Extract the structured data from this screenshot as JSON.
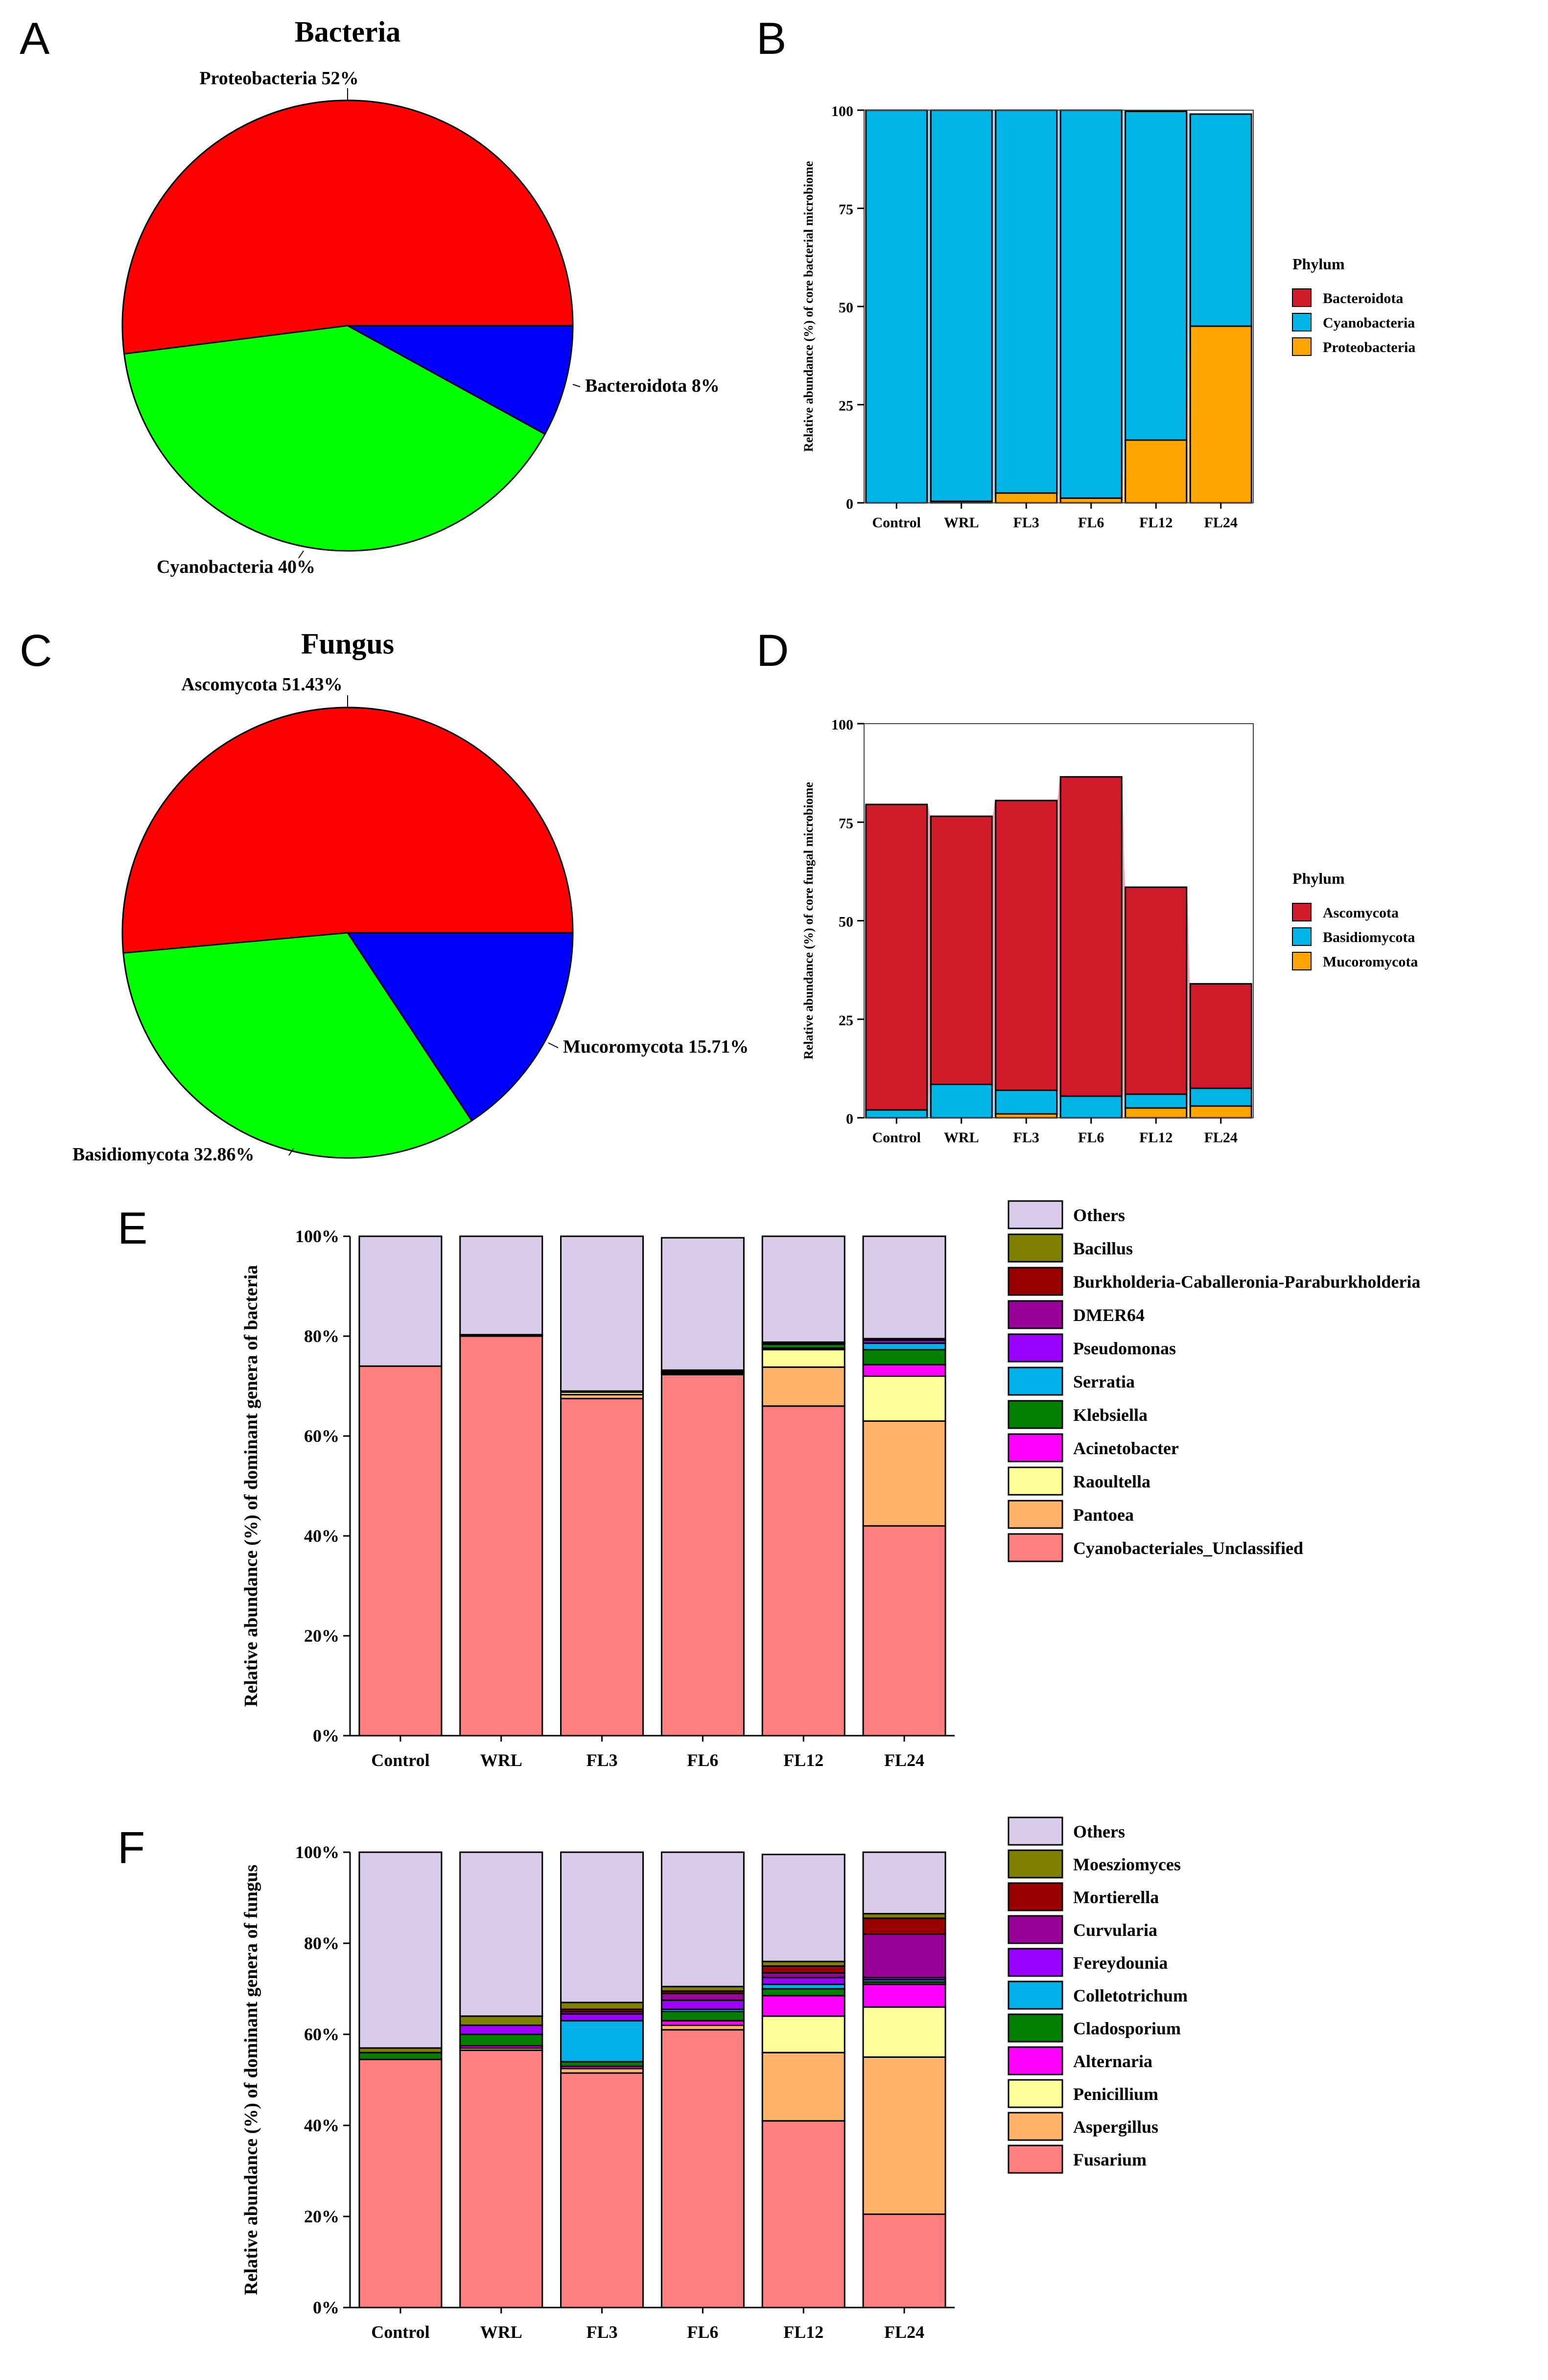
{
  "chart_data": [
    {
      "id": "A",
      "letter": "A",
      "type": "pie",
      "title": "Bacteria",
      "slices": [
        {
          "name": "Proteobacteria",
          "value": 52,
          "label": "Proteobacteria 52%",
          "color": "#ff0000"
        },
        {
          "name": "Cyanobacteria",
          "value": 40,
          "label": "Cyanobacteria 40%",
          "color": "#00ff00"
        },
        {
          "name": "Bacteroidota",
          "value": 8,
          "label": "Bacteroidota 8%",
          "color": "#0000ff"
        }
      ]
    },
    {
      "id": "B",
      "letter": "B",
      "type": "bar",
      "ylabel": "Relative abundance (%) of core bacterial microbiome",
      "ylim": [
        0,
        100
      ],
      "yticks": [
        "0",
        "25",
        "50",
        "75",
        "100"
      ],
      "categories": [
        "Control",
        "WRL",
        "FL3",
        "FL6",
        "FL12",
        "FL24"
      ],
      "legend_title": "Phylum",
      "series": [
        {
          "name": "Proteobacteria",
          "values": [
            0,
            0.4,
            2.5,
            1.2,
            16,
            45
          ],
          "color": "#ffa500",
          "flow": "#ffd580"
        },
        {
          "name": "Cyanobacteria",
          "values": [
            100,
            99.6,
            97.5,
            98.8,
            83.7,
            54
          ],
          "color": "#00b4e6",
          "flow": "#9bd8f2"
        },
        {
          "name": "Bacteroidota",
          "values": [
            0,
            0,
            0,
            0,
            0,
            0
          ],
          "color": "#d01a2a",
          "flow": "#f0a0a8"
        }
      ],
      "legend": [
        "Bacteroidota",
        "Cyanobacteria",
        "Proteobacteria"
      ]
    },
    {
      "id": "C",
      "letter": "C",
      "type": "pie",
      "title": "Fungus",
      "slices": [
        {
          "name": "Ascomycota",
          "value": 51.43,
          "label": "Ascomycota 51.43%",
          "color": "#ff0000"
        },
        {
          "name": "Basidiomycota",
          "value": 32.86,
          "label": "Basidiomycota 32.86%",
          "color": "#00ff00"
        },
        {
          "name": "Mucoromycota",
          "value": 15.71,
          "label": "Mucoromycota 15.71%",
          "color": "#0000ff"
        }
      ]
    },
    {
      "id": "D",
      "letter": "D",
      "type": "bar",
      "ylabel": "Relative abundance (%) of core  fungal microbiome",
      "ylim": [
        0,
        100
      ],
      "yticks": [
        "0",
        "25",
        "50",
        "75",
        "100"
      ],
      "categories": [
        "Control",
        "WRL",
        "FL3",
        "FL6",
        "FL12",
        "FL24"
      ],
      "legend_title": "Phylum",
      "series": [
        {
          "name": "Mucoromycota",
          "values": [
            0,
            0,
            1,
            0,
            2.5,
            3
          ],
          "color": "#ffa500",
          "flow": "#ffd580"
        },
        {
          "name": "Basidiomycota",
          "values": [
            2,
            8.5,
            6,
            5.5,
            3.5,
            4.5
          ],
          "color": "#00b4e6",
          "flow": "#9bd8f2"
        },
        {
          "name": "Ascomycota",
          "values": [
            77.5,
            68,
            73.5,
            81,
            52.5,
            26.5
          ],
          "color": "#d01a2a",
          "flow": "#f0a0a8"
        }
      ],
      "legend": [
        "Ascomycota",
        "Basidiomycota",
        "Mucoromycota"
      ]
    },
    {
      "id": "E",
      "letter": "E",
      "type": "bar",
      "ylabel": "Relative abundance (%) of dominant genera of bacteria",
      "ylim": [
        0,
        100
      ],
      "yticks": [
        "0%",
        "20%",
        "40%",
        "60%",
        "80%",
        "100%"
      ],
      "categories": [
        "Control",
        "WRL",
        "FL3",
        "FL6",
        "FL12",
        "FL24"
      ],
      "series": [
        {
          "name": "Cyanobacteriales_Unclassified",
          "values": [
            74,
            80,
            67.5,
            72.3,
            66,
            42
          ],
          "color": "#ff7f7f"
        },
        {
          "name": "Pantoea",
          "values": [
            0,
            0,
            0.8,
            0.3,
            7.8,
            21
          ],
          "color": "#ffb36b"
        },
        {
          "name": "Raoultella",
          "values": [
            0,
            0,
            0.5,
            0.3,
            3.5,
            9
          ],
          "color": "#ffff99"
        },
        {
          "name": "Acinetobacter",
          "values": [
            0,
            0,
            0,
            0,
            0.3,
            2.3
          ],
          "color": "#ff00ff"
        },
        {
          "name": "Klebsiella",
          "values": [
            0,
            0,
            0,
            0,
            0.8,
            3
          ],
          "color": "#007f00"
        },
        {
          "name": "Serratia",
          "values": [
            0,
            0,
            0,
            0,
            0.3,
            1.3
          ],
          "color": "#00b0e8"
        },
        {
          "name": "Pseudomonas",
          "values": [
            0,
            0,
            0,
            0,
            0,
            0.6
          ],
          "color": "#9900ff"
        },
        {
          "name": "DMER64",
          "values": [
            0,
            0,
            0,
            0,
            0,
            0.2
          ],
          "color": "#990099"
        },
        {
          "name": "Burkholderia-Caballeronia-Paraburkholderia",
          "values": [
            0,
            0,
            0,
            0,
            0,
            0.1
          ],
          "color": "#990000"
        },
        {
          "name": "Bacillus",
          "values": [
            0,
            0.3,
            0.2,
            0.3,
            0.1,
            0
          ],
          "color": "#7f7f00"
        },
        {
          "name": "Others",
          "values": [
            26,
            19.7,
            31,
            26.5,
            21.2,
            20.5
          ],
          "color": "#d9ccea"
        }
      ],
      "legend": [
        "Others",
        "Bacillus",
        "Burkholderia-Caballeronia-Paraburkholderia",
        "DMER64",
        "Pseudomonas",
        "Serratia",
        "Klebsiella",
        "Acinetobacter",
        "Raoultella",
        "Pantoea",
        "Cyanobacteriales_Unclassified"
      ]
    },
    {
      "id": "F",
      "letter": "F",
      "type": "bar",
      "ylabel": "Relative abundance (%) of dominant genera of fungus",
      "ylim": [
        0,
        100
      ],
      "yticks": [
        "0%",
        "20%",
        "40%",
        "60%",
        "80%",
        "100%"
      ],
      "categories": [
        "Control",
        "WRL",
        "FL3",
        "FL6",
        "FL12",
        "FL24"
      ],
      "series": [
        {
          "name": "Fusarium",
          "values": [
            54.5,
            56.5,
            51.5,
            61,
            41,
            20.5
          ],
          "color": "#ff7f7f"
        },
        {
          "name": "Aspergillus",
          "values": [
            0,
            0.5,
            1,
            1,
            15,
            34.5
          ],
          "color": "#ffb36b"
        },
        {
          "name": "Penicillium",
          "values": [
            0,
            0,
            0,
            0,
            8,
            11
          ],
          "color": "#ffff99"
        },
        {
          "name": "Alternaria",
          "values": [
            0,
            0.5,
            0.5,
            1,
            4.5,
            5
          ],
          "color": "#ff00ff"
        },
        {
          "name": "Cladosporium",
          "values": [
            1.5,
            2.5,
            1,
            2,
            1.5,
            0.5
          ],
          "color": "#007f00"
        },
        {
          "name": "Colletotrichum",
          "values": [
            0,
            0,
            9,
            0.5,
            1,
            0.5
          ],
          "color": "#00b0e8"
        },
        {
          "name": "Fereydounia",
          "values": [
            0,
            2,
            1.5,
            2,
            1.5,
            0.5
          ],
          "color": "#9900ff"
        },
        {
          "name": "Curvularia",
          "values": [
            0,
            0,
            0.5,
            1.5,
            1,
            9.5
          ],
          "color": "#990099"
        },
        {
          "name": "Mortierella",
          "values": [
            0,
            0,
            0.5,
            0.5,
            1.5,
            3.5
          ],
          "color": "#990000"
        },
        {
          "name": "Moesziomyces",
          "values": [
            1,
            2,
            1.5,
            1,
            1,
            1
          ],
          "color": "#7f7f00"
        },
        {
          "name": "Others",
          "values": [
            43,
            36,
            33,
            29.5,
            23.5,
            13.5
          ],
          "color": "#d9ccea"
        }
      ],
      "legend": [
        "Others",
        "Moesziomyces",
        "Mortierella",
        "Curvularia",
        "Fereydounia",
        "Colletotrichum",
        "Cladosporium",
        "Alternaria",
        "Penicillium",
        "Aspergillus",
        "Fusarium"
      ]
    }
  ]
}
